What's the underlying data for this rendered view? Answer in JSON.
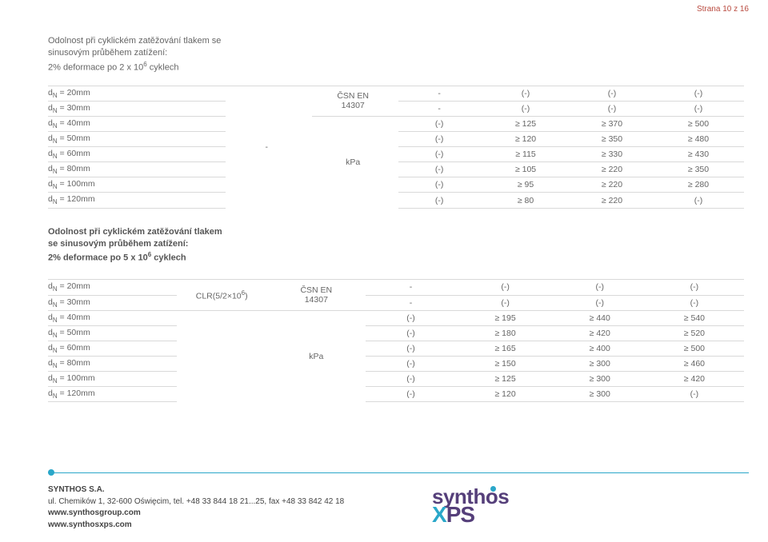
{
  "page_number": "Strana 10 z 16",
  "section1": {
    "title_line1": "Odolnost při cyklickém zatěžování tlakem se",
    "title_line2": "sinusovým průběhem zatížení:",
    "title_line3": "2% deformace po 2 x 10",
    "title_sup": "6",
    "title_tail": " cyklech",
    "mid_col": "-",
    "unit": "kPa",
    "std_line1": "ČSN EN",
    "std_line2": "14307",
    "rows": [
      {
        "label_pre": "d",
        "label_sub": "N",
        "label_post": " = 20mm",
        "c1": "-",
        "c2": "(-)",
        "c3": "(-)",
        "c4": "(-)"
      },
      {
        "label_pre": "d",
        "label_sub": "N",
        "label_post": " = 30mm",
        "c1": "-",
        "c2": "(-)",
        "c3": "(-)",
        "c4": "(-)"
      },
      {
        "label_pre": "d",
        "label_sub": "N",
        "label_post": " = 40mm",
        "c1": "(-)",
        "c2": "≥ 125",
        "c3": "≥ 370",
        "c4": "≥ 500"
      },
      {
        "label_pre": "d",
        "label_sub": "N",
        "label_post": " = 50mm",
        "c1": "(-)",
        "c2": "≥ 120",
        "c3": "≥ 350",
        "c4": "≥ 480"
      },
      {
        "label_pre": "d",
        "label_sub": "N",
        "label_post": " = 60mm",
        "c1": "(-)",
        "c2": "≥ 115",
        "c3": "≥ 330",
        "c4": "≥ 430"
      },
      {
        "label_pre": "d",
        "label_sub": "N",
        "label_post": " = 80mm",
        "c1": "(-)",
        "c2": "≥ 105",
        "c3": "≥ 220",
        "c4": "≥ 350"
      },
      {
        "label_pre": "d",
        "label_sub": "N",
        "label_post": " = 100mm",
        "c1": "(-)",
        "c2": "≥ 95",
        "c3": "≥ 220",
        "c4": "≥ 280"
      },
      {
        "label_pre": "d",
        "label_sub": "N",
        "label_post": " = 120mm",
        "c1": "(-)",
        "c2": "≥ 80",
        "c3": "≥ 220",
        "c4": "(-)"
      }
    ]
  },
  "section2": {
    "title_line1": "Odolnost při cyklickém zatěžování tlakem",
    "title_line2": "se sinusovým průběhem zatížení:",
    "title_line3": "2% deformace po 5 x 10",
    "title_sup": "6",
    "title_tail": " cyklech",
    "mid_col_pre": "CLR(5/2×10",
    "mid_col_sup": "6",
    "mid_col_post": ")",
    "unit": "kPa",
    "std_line1": "ČSN EN",
    "std_line2": "14307",
    "rows": [
      {
        "label_pre": "d",
        "label_sub": "N",
        "label_post": " = 20mm",
        "c1": "-",
        "c2": "(-)",
        "c3": "(-)",
        "c4": "(-)"
      },
      {
        "label_pre": "d",
        "label_sub": "N",
        "label_post": " = 30mm",
        "c1": "-",
        "c2": "(-)",
        "c3": "(-)",
        "c4": "(-)"
      },
      {
        "label_pre": "d",
        "label_sub": "N",
        "label_post": " = 40mm",
        "c1": "(-)",
        "c2": "≥ 195",
        "c3": "≥ 440",
        "c4": "≥ 540"
      },
      {
        "label_pre": "d",
        "label_sub": "N",
        "label_post": " = 50mm",
        "c1": "(-)",
        "c2": "≥ 180",
        "c3": "≥ 420",
        "c4": "≥ 520"
      },
      {
        "label_pre": "d",
        "label_sub": "N",
        "label_post": " = 60mm",
        "c1": "(-)",
        "c2": "≥ 165",
        "c3": "≥ 400",
        "c4": "≥ 500"
      },
      {
        "label_pre": "d",
        "label_sub": "N",
        "label_post": " = 80mm",
        "c1": "(-)",
        "c2": "≥ 150",
        "c3": "≥ 300",
        "c4": "≥ 460"
      },
      {
        "label_pre": "d",
        "label_sub": "N",
        "label_post": " = 100mm",
        "c1": "(-)",
        "c2": "≥ 125",
        "c3": "≥ 300",
        "c4": "≥ 420"
      },
      {
        "label_pre": "d",
        "label_sub": "N",
        "label_post": " = 120mm",
        "c1": "(-)",
        "c2": "≥ 120",
        "c3": "≥ 300",
        "c4": "(-)"
      }
    ]
  },
  "footer": {
    "company": "SYNTHOS S.A.",
    "address": "ul. Chemików 1, 32-600 Oświęcim, tel. +48 33 844 18 21...25, fax +48 33 842 42 18",
    "url1": "www.synthosgroup.com",
    "url2": "www.synthosxps.com"
  },
  "logo": {
    "brand": "synthos",
    "sub_x": "X",
    "sub_p": "P",
    "sub_s": "S"
  },
  "colors": {
    "accent_red": "#b94a3f",
    "accent_teal": "#2aa7c9",
    "brand_purple": "#553f7a",
    "grid": "#d9d9d9",
    "text": "#666666"
  }
}
